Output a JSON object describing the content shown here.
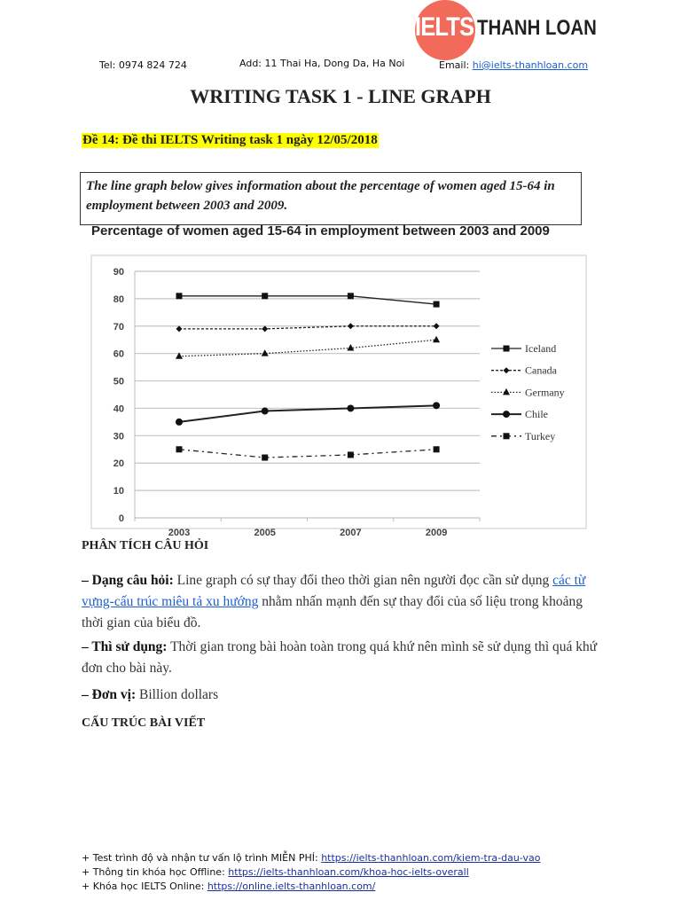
{
  "header": {
    "logo_text": "IELTS THANH LOAN",
    "logo_ielts": "IELTS",
    "logo_name": "THANH LOAN",
    "tel": "Tel: 0974 824 724",
    "address": "Add: 11 Thai Ha, Dong Da, Ha Noi",
    "email_label": "Email: ",
    "email": "hi@ielts-thanhloan.com"
  },
  "title": "WRITING TASK 1 - LINE GRAPH",
  "subtitle": "Đề 14: Đề thi IELTS Writing task 1 ngày 12/05/2018",
  "prompt": "The line graph below gives information about the percentage of women aged 15-64 in employment between 2003 and 2009.",
  "chart_data": {
    "type": "line",
    "title": "Percentage of women aged 15-64 in employment between 2003 and 2009",
    "categories": [
      "2003",
      "2005",
      "2007",
      "2009"
    ],
    "ylim": [
      0,
      90
    ],
    "yticks": [
      "0",
      "10",
      "20",
      "30",
      "40",
      "50",
      "60",
      "70",
      "80",
      "90"
    ],
    "grid": true,
    "legend_position": "right",
    "series": [
      {
        "name": "Iceland",
        "values": [
          81,
          81,
          81,
          78
        ],
        "line": "solid",
        "marker": "square"
      },
      {
        "name": "Canada",
        "values": [
          69,
          69,
          70,
          70
        ],
        "line": "dashed",
        "marker": "diamond"
      },
      {
        "name": "Germany",
        "values": [
          59,
          60,
          62,
          65
        ],
        "line": "dotted",
        "marker": "triangle"
      },
      {
        "name": "Chile",
        "values": [
          35,
          39,
          40,
          41
        ],
        "line": "solid-thick",
        "marker": "circle"
      },
      {
        "name": "Turkey",
        "values": [
          25,
          22,
          23,
          25
        ],
        "line": "dash-dot",
        "marker": "square"
      }
    ]
  },
  "analysis": {
    "heading": "PHÂN TÍCH CÂU HỎI",
    "q_type_label": "– Dạng câu hỏi:",
    "q_type_text1": " Line graph có sự thay đổi theo thời gian nên người đọc cần sử dụng ",
    "q_type_link": "các từ vựng-cấu trúc miêu tả xu hướng",
    "q_type_text2": " nhằm nhấn mạnh đến sự thay đổi của số liệu trong khoảng thời gian của biểu đồ.",
    "tense_label": "– Thì sử dụng:",
    "tense_text": " Thời gian trong bài hoàn toàn trong quá khứ nên mình sẽ sử dụng thì quá khứ đơn cho bài này.",
    "unit_label": "– Đơn vị:",
    "unit_text": " Billion dollars"
  },
  "structure_heading": "CẤU TRÚC BÀI VIẾT",
  "footer": [
    {
      "label": "+ Test trình độ và nhận tư vấn lộ trình MIỄN PHÍ: ",
      "link": "https://ielts-thanhloan.com/kiem-tra-dau-vao"
    },
    {
      "label": "+ Thông tin khóa học Offline: ",
      "link": "https://ielts-thanhloan.com/khoa-hoc-ielts-overall"
    },
    {
      "label": "+ Khóa học IELTS Online: ",
      "link": "https://online.ielts-thanhloan.com/"
    }
  ]
}
